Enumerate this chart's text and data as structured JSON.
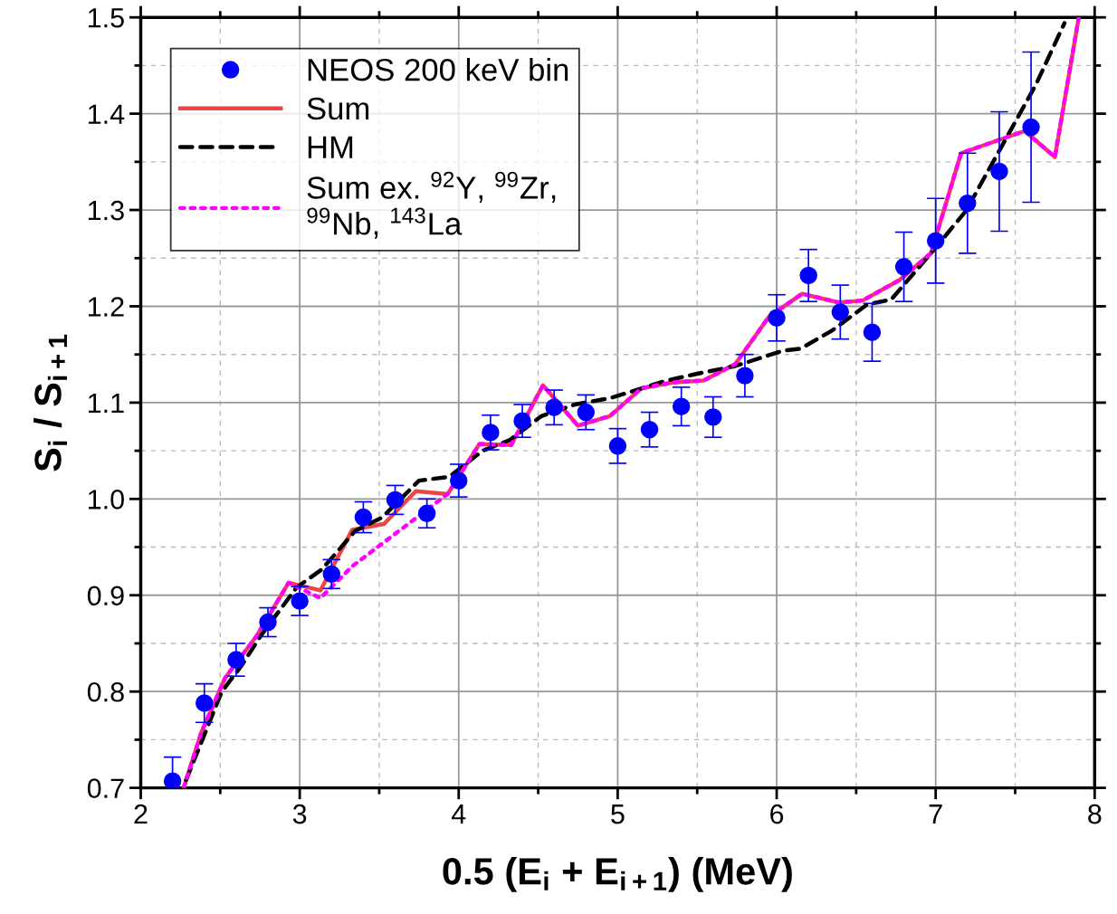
{
  "chart_data": {
    "type": "scatter",
    "xlabel": "0.5 (E$_{i}$ + E$_{i+1}$) (MeV)",
    "ylabel": "S$_{i}$ / S$_{i+1}$",
    "xlim": [
      2,
      8
    ],
    "ylim": [
      0.7,
      1.5
    ],
    "xticks": [
      2,
      3,
      4,
      5,
      6,
      7,
      8
    ],
    "yticks": [
      0.7,
      0.8,
      0.9,
      {
        "value": 1.0,
        "label": "1.0"
      },
      1.1,
      1.2,
      1.3,
      1.4,
      1.5
    ],
    "grid": true,
    "legend": "top left",
    "series": [
      {
        "name": "NEOS 200 keV bin",
        "type": "scatter",
        "marker": "circle",
        "color": "#0000ff",
        "x": [
          2.2,
          2.4,
          2.6,
          2.8,
          3.0,
          3.2,
          3.4,
          3.6,
          3.8,
          4.0,
          4.2,
          4.4,
          4.6,
          4.8,
          5.0,
          5.2,
          5.4,
          5.6,
          5.8,
          6.0,
          6.2,
          6.4,
          6.6,
          6.8,
          7.0,
          7.2,
          7.4,
          7.6
        ],
        "values": [
          0.707,
          0.788,
          0.833,
          0.872,
          0.894,
          0.922,
          0.981,
          0.999,
          0.985,
          1.019,
          1.069,
          1.081,
          1.095,
          1.09,
          1.055,
          1.072,
          1.096,
          1.085,
          1.128,
          1.188,
          1.232,
          1.194,
          1.173,
          1.241,
          1.268,
          1.307,
          1.34,
          1.386
        ],
        "errors": [
          0.025,
          0.02,
          0.017,
          0.015,
          0.015,
          0.015,
          0.016,
          0.015,
          0.015,
          0.017,
          0.018,
          0.017,
          0.018,
          0.018,
          0.018,
          0.018,
          0.02,
          0.021,
          0.022,
          0.024,
          0.027,
          0.028,
          0.03,
          0.036,
          0.044,
          0.052,
          0.062,
          0.078
        ]
      },
      {
        "name": "Sum",
        "type": "line",
        "line_style": "solid",
        "color": "#ee4444",
        "x": [
          2.27,
          2.38,
          2.53,
          2.73,
          2.93,
          3.13,
          3.33,
          3.53,
          3.73,
          3.93,
          4.13,
          4.33,
          4.53,
          4.75,
          4.95,
          5.15,
          5.35,
          5.54,
          5.74,
          5.95,
          6.16,
          6.39,
          6.54,
          6.77,
          6.97,
          7.16,
          7.56,
          7.75,
          7.9
        ],
        "values": [
          0.7,
          0.757,
          0.814,
          0.858,
          0.913,
          0.905,
          0.968,
          0.974,
          1.008,
          1.005,
          1.057,
          1.056,
          1.118,
          1.076,
          1.086,
          1.115,
          1.121,
          1.123,
          1.14,
          1.189,
          1.213,
          1.204,
          1.206,
          1.227,
          1.255,
          1.359,
          1.382,
          1.355,
          1.5
        ]
      },
      {
        "name": "HM",
        "type": "line",
        "line_style": "dashed",
        "color": "#000000",
        "x": [
          2.285,
          2.51,
          2.63,
          2.76,
          2.98,
          3.14,
          3.35,
          3.52,
          3.75,
          3.94,
          4.15,
          4.32,
          4.52,
          4.73,
          4.96,
          5.31,
          5.53,
          5.74,
          6.04,
          6.15,
          6.35,
          6.57,
          6.72,
          6.97,
          7.19,
          7.63,
          7.81
        ],
        "values": [
          0.708,
          0.8,
          0.826,
          0.859,
          0.908,
          0.927,
          0.967,
          0.981,
          1.019,
          1.023,
          1.05,
          1.061,
          1.086,
          1.098,
          1.105,
          1.123,
          1.131,
          1.138,
          1.154,
          1.156,
          1.175,
          1.202,
          1.207,
          1.255,
          1.299,
          1.43,
          1.494
        ]
      },
      {
        "name": "Sum ex. $^{92}$Y, $^{99}$Zr,\n$^{99}$Nb, $^{143}$La",
        "type": "line",
        "line_style": "dotted",
        "color": "#ff00ff",
        "x": [
          2.27,
          2.38,
          2.53,
          2.73,
          2.93,
          3.13,
          3.33,
          3.53,
          3.73,
          3.93,
          4.13,
          4.33,
          4.53,
          4.75,
          4.95,
          5.15,
          5.35,
          5.54,
          5.74,
          5.95,
          6.16,
          6.39,
          6.54,
          6.77,
          6.97,
          7.16,
          7.56,
          7.75,
          7.9
        ],
        "values": [
          0.7,
          0.757,
          0.814,
          0.858,
          0.913,
          0.897,
          0.93,
          0.955,
          0.98,
          1.005,
          1.057,
          1.056,
          1.118,
          1.076,
          1.086,
          1.115,
          1.121,
          1.123,
          1.14,
          1.189,
          1.213,
          1.204,
          1.206,
          1.227,
          1.255,
          1.359,
          1.382,
          1.355,
          1.5
        ]
      }
    ]
  }
}
